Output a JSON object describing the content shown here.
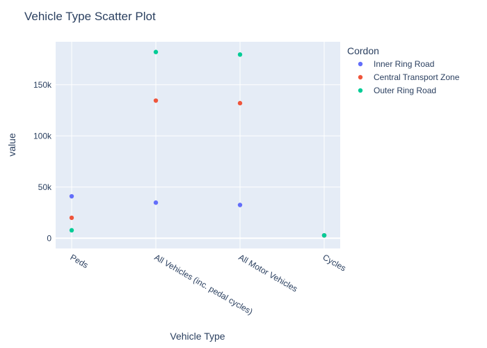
{
  "chart_data": {
    "type": "scatter",
    "title": "Vehicle Type Scatter Plot",
    "xlabel": "Vehicle Type",
    "ylabel": "value",
    "categories": [
      "Peds",
      "All Vehicles (inc. pedal cycles)",
      "All Motor Vehicles",
      "Cycles"
    ],
    "ylim": [
      -10000,
      192000
    ],
    "yticks": [
      0,
      50000,
      100000,
      150000
    ],
    "ytick_labels": [
      "0",
      "50k",
      "100k",
      "150k"
    ],
    "grid": true,
    "legend": {
      "title": "Cordon",
      "placement": "top-right"
    },
    "series": [
      {
        "name": "Inner Ring Road",
        "color": "#636efa",
        "values": [
          41000,
          34800,
          32500,
          2800
        ]
      },
      {
        "name": "Central Transport Zone",
        "color": "#ef553b",
        "values": [
          20000,
          134500,
          132000,
          2800
        ]
      },
      {
        "name": "Outer Ring Road",
        "color": "#00cc96",
        "values": [
          7800,
          182000,
          179500,
          2800
        ]
      }
    ]
  },
  "colors": {
    "plot_background": "#e5ecf6",
    "grid": "#ffffff",
    "text": "#2a3f5f"
  }
}
